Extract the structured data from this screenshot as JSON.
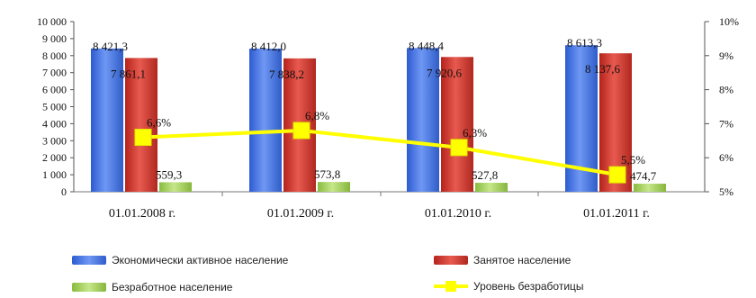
{
  "chart_data": {
    "type": "bar",
    "categories": [
      "01.01.2008 г.",
      "01.01.2009 г.",
      "01.01.2010 г.",
      "01.01.2011 г."
    ],
    "series": [
      {
        "name": "Экономически активное население",
        "color": "#3f6fe0",
        "values": [
          8421.3,
          8412.0,
          8448.4,
          8613.3
        ],
        "labels": [
          "8 421,3",
          "8 412,0",
          "8 448,4",
          "8 613,3"
        ]
      },
      {
        "name": "Занятое население",
        "color": "#d23228",
        "values": [
          7861.1,
          7838.2,
          7920.6,
          8137.6
        ],
        "labels": [
          "7 861,1",
          "7 838,2",
          "7 920,6",
          "8 137,6"
        ]
      },
      {
        "name": "Безработное население",
        "color": "#a8d35a",
        "values": [
          559.3,
          573.8,
          527.8,
          474.7
        ],
        "labels": [
          "559,3",
          "573,8",
          "527,8",
          "474,7"
        ]
      }
    ],
    "line_series": {
      "name": "Уровень безработицы",
      "color": "#ffff00",
      "values": [
        6.6,
        6.8,
        6.3,
        5.5
      ],
      "labels": [
        "6,6%",
        "6,8%",
        "6,3%",
        "5,5%"
      ]
    },
    "y_axis": {
      "ylim": [
        0,
        10000
      ],
      "ticks": [
        "0",
        "1 000",
        "2 000",
        "3 000",
        "4 000",
        "5 000",
        "6 000",
        "7 000",
        "8 000",
        "9 000",
        "10 000"
      ]
    },
    "y2_axis": {
      "ylim": [
        5,
        10
      ],
      "ticks": [
        "5%",
        "6%",
        "7%",
        "8%",
        "9%",
        "10%"
      ]
    },
    "legend_position": "bottom"
  }
}
